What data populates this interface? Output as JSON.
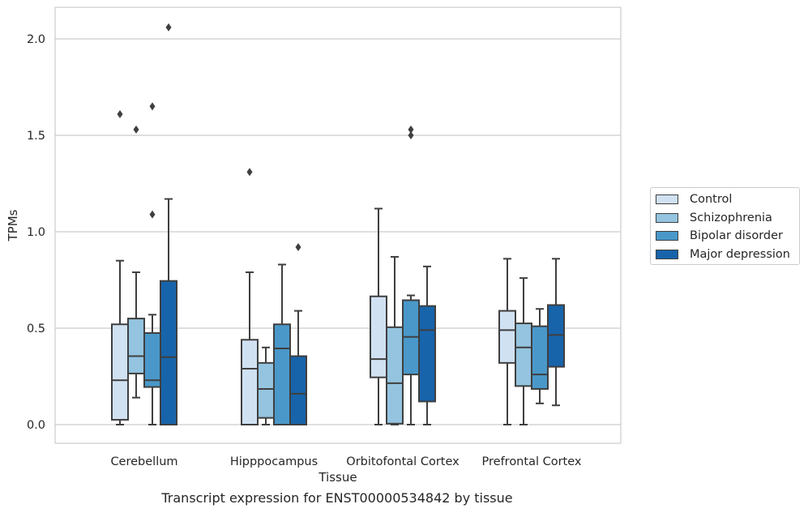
{
  "chart_data": {
    "type": "box",
    "xlabel": "Tissue",
    "ylabel": "TPMs",
    "ylim": [
      -0.1,
      2.16
    ],
    "yticks": [
      "0.0",
      "0.5",
      "1.0",
      "1.5",
      "2.0"
    ],
    "ytick_values": [
      0,
      0.5,
      1.0,
      1.5,
      2.0
    ],
    "grid": "horizontal",
    "legend_position": "right",
    "categories": [
      "Cerebellum",
      "Hipppocampus",
      "Orbitofontal Cortex",
      "Prefrontal Cortex"
    ],
    "series": [
      {
        "name": "Control",
        "color": "#d0e1f2",
        "boxes": [
          {
            "whisker_low": 0.0,
            "q1": 0.025,
            "median": 0.23,
            "q3": 0.52,
            "whisker_high": 0.85,
            "outliers": [
              1.61
            ]
          },
          {
            "whisker_low": 0.0,
            "q1": 0.0,
            "median": 0.29,
            "q3": 0.44,
            "whisker_high": 0.79,
            "outliers": [
              1.31
            ]
          },
          {
            "whisker_low": 0.0,
            "q1": 0.245,
            "median": 0.34,
            "q3": 0.665,
            "whisker_high": 1.12,
            "outliers": []
          },
          {
            "whisker_low": 0.0,
            "q1": 0.32,
            "median": 0.49,
            "q3": 0.59,
            "whisker_high": 0.86,
            "outliers": []
          }
        ]
      },
      {
        "name": "Schizophrenia",
        "color": "#94c4df",
        "boxes": [
          {
            "whisker_low": 0.14,
            "q1": 0.265,
            "median": 0.355,
            "q3": 0.55,
            "whisker_high": 0.79,
            "outliers": [
              1.53
            ]
          },
          {
            "whisker_low": 0.0,
            "q1": 0.035,
            "median": 0.185,
            "q3": 0.32,
            "whisker_high": 0.4,
            "outliers": []
          },
          {
            "whisker_low": 0.0,
            "q1": 0.005,
            "median": 0.215,
            "q3": 0.505,
            "whisker_high": 0.87,
            "outliers": []
          },
          {
            "whisker_low": 0.0,
            "q1": 0.2,
            "median": 0.4,
            "q3": 0.525,
            "whisker_high": 0.76,
            "outliers": []
          }
        ]
      },
      {
        "name": "Bipolar disorder",
        "color": "#4a98c9",
        "boxes": [
          {
            "whisker_low": 0.0,
            "q1": 0.195,
            "median": 0.23,
            "q3": 0.475,
            "whisker_high": 0.57,
            "outliers": [
              1.09,
              1.65
            ]
          },
          {
            "whisker_low": 0.0,
            "q1": 0.0,
            "median": 0.395,
            "q3": 0.52,
            "whisker_high": 0.83,
            "outliers": []
          },
          {
            "whisker_low": 0.0,
            "q1": 0.26,
            "median": 0.455,
            "q3": 0.645,
            "whisker_high": 0.67,
            "outliers": [
              1.5,
              1.53
            ]
          },
          {
            "whisker_low": 0.11,
            "q1": 0.185,
            "median": 0.26,
            "q3": 0.51,
            "whisker_high": 0.6,
            "outliers": []
          }
        ]
      },
      {
        "name": "Major depression",
        "color": "#1764ab",
        "boxes": [
          {
            "whisker_low": 0.0,
            "q1": 0.0,
            "median": 0.35,
            "q3": 0.745,
            "whisker_high": 1.17,
            "outliers": [
              2.06
            ]
          },
          {
            "whisker_low": 0.0,
            "q1": 0.0,
            "median": 0.16,
            "q3": 0.355,
            "whisker_high": 0.59,
            "outliers": [
              0.92
            ]
          },
          {
            "whisker_low": 0.0,
            "q1": 0.12,
            "median": 0.49,
            "q3": 0.615,
            "whisker_high": 0.82,
            "outliers": []
          },
          {
            "whisker_low": 0.1,
            "q1": 0.3,
            "median": 0.465,
            "q3": 0.62,
            "whisker_high": 0.86,
            "outliers": []
          }
        ]
      }
    ]
  },
  "caption": "Transcript expression for ENST00000534842 by tissue"
}
